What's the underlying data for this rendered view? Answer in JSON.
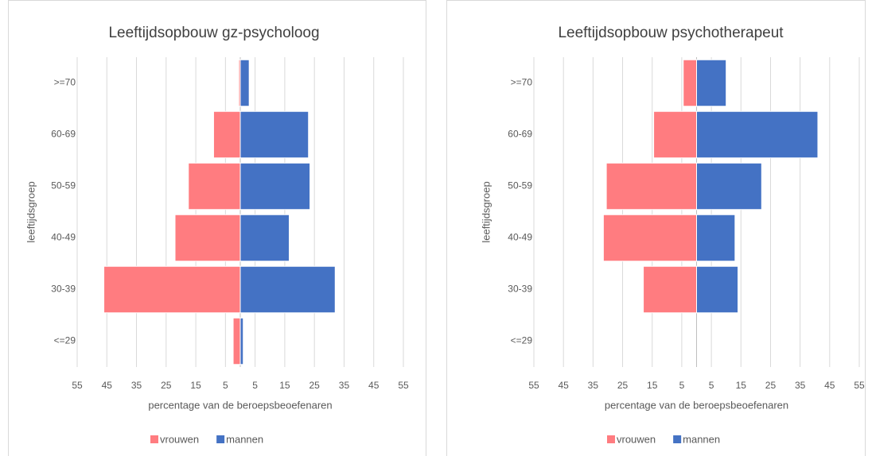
{
  "chart_data": [
    {
      "type": "bar",
      "orientation": "horizontal",
      "stacked": true,
      "title": "Leeftijdsopbouw gz-psycholoog",
      "xlabel": "percentage van de beroepsbeoefenaren",
      "ylabel": "leeftijdsgroep",
      "categories": [
        "<=29",
        "30-39",
        "40-49",
        "50-59",
        "60-69",
        ">=70"
      ],
      "series": [
        {
          "name": "vrouwen",
          "color": "#ff7c80",
          "values": [
            -2.4,
            -46,
            -22,
            -17.5,
            -9,
            -0.5
          ]
        },
        {
          "name": "mannen",
          "color": "#4472c4",
          "values": [
            1,
            32,
            16.5,
            23.5,
            23,
            3
          ]
        }
      ],
      "xlim": [
        -55,
        55
      ],
      "xticks": [
        {
          "value": -55,
          "label": "55"
        },
        {
          "value": -45,
          "label": "45"
        },
        {
          "value": -35,
          "label": "35"
        },
        {
          "value": -25,
          "label": "25"
        },
        {
          "value": -15,
          "label": "15"
        },
        {
          "value": -5,
          "label": "5"
        },
        5,
        15,
        25,
        35,
        45,
        55
      ],
      "grid": true,
      "legend": "bottom"
    },
    {
      "type": "bar",
      "orientation": "horizontal",
      "stacked": true,
      "title": "Leeftijdsopbouw psychotherapeut",
      "xlabel": "percentage van de beroepsbeoefenaren",
      "ylabel": "leeftijdsgroep",
      "categories": [
        "<=29",
        "30-39",
        "40-49",
        "50-59",
        "60-69",
        ">=70"
      ],
      "series": [
        {
          "name": "vrouwen",
          "color": "#ff7c80",
          "values": [
            0,
            -18,
            -31.5,
            -30.5,
            -14.5,
            -4.5
          ]
        },
        {
          "name": "mannen",
          "color": "#4472c4",
          "values": [
            0,
            14,
            13,
            22,
            41,
            10
          ]
        }
      ],
      "xlim": [
        -55,
        55
      ],
      "xticks": [
        {
          "value": -55,
          "label": "55"
        },
        {
          "value": -45,
          "label": "45"
        },
        {
          "value": -35,
          "label": "35"
        },
        {
          "value": -25,
          "label": "25"
        },
        {
          "value": -15,
          "label": "15"
        },
        {
          "value": -5,
          "label": "5"
        },
        5,
        15,
        25,
        35,
        45,
        55
      ],
      "grid": true,
      "legend": "bottom"
    }
  ]
}
